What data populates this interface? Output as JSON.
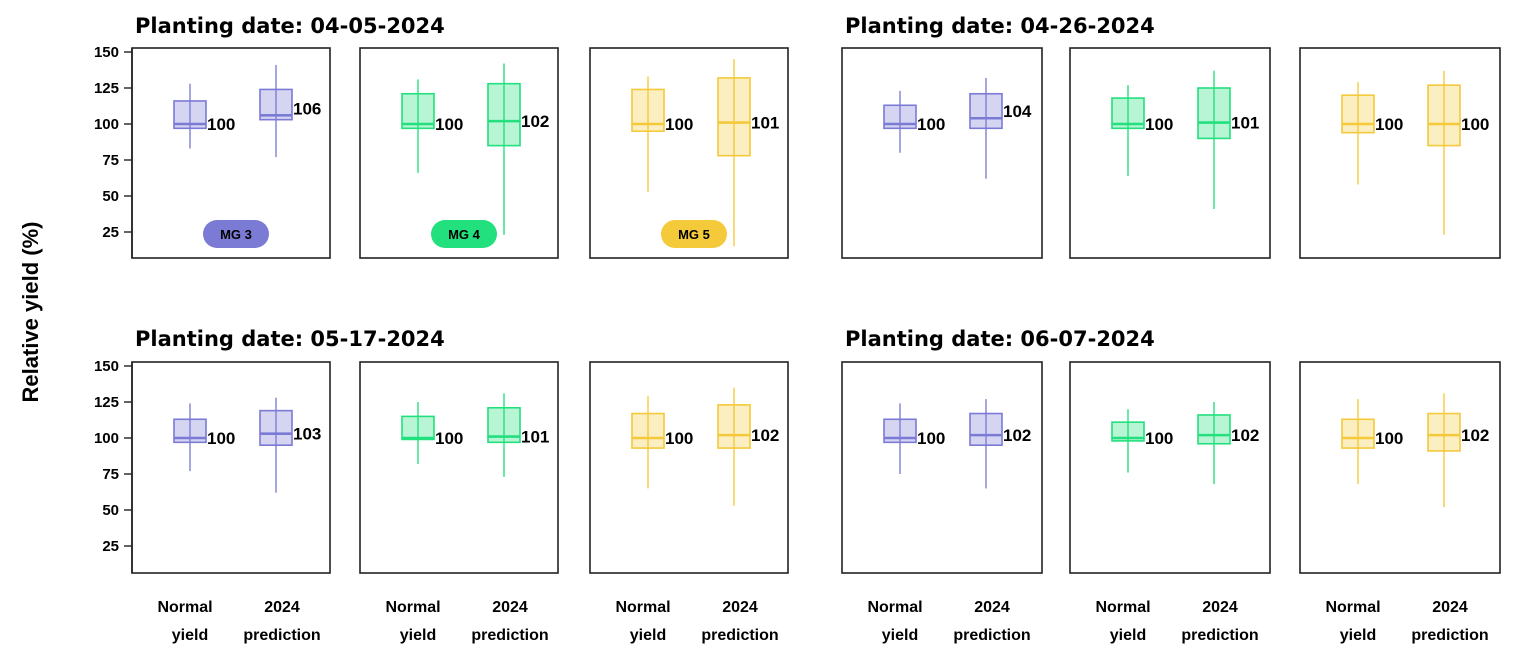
{
  "chart_data": {
    "type": "box",
    "ylabel": "Relative yield (%)",
    "ylim": [
      5,
      150
    ],
    "yticks": [
      25,
      50,
      75,
      100,
      125,
      150
    ],
    "x_categories": [
      [
        "Normal",
        "yield"
      ],
      [
        "2024",
        "prediction"
      ]
    ],
    "groups": [
      {
        "name": "MG 3",
        "color": "#7b7bd6"
      },
      {
        "name": "MG 4",
        "color": "#22e07d"
      },
      {
        "name": "MG 5",
        "color": "#f4c93a"
      }
    ],
    "facets": [
      {
        "title": "Planting date: 04-05-2024",
        "boxes": [
          {
            "normal": {
              "min": 83,
              "q1": 97,
              "median": 100,
              "q3": 116,
              "max": 128,
              "label": "100"
            },
            "prediction": {
              "min": 77,
              "q1": 103,
              "median": 106,
              "q3": 124,
              "max": 141,
              "label": "106"
            }
          },
          {
            "normal": {
              "min": 66,
              "q1": 97,
              "median": 100,
              "q3": 121,
              "max": 131,
              "label": "100"
            },
            "prediction": {
              "min": 23,
              "q1": 85,
              "median": 102,
              "q3": 128,
              "max": 142,
              "label": "102"
            }
          },
          {
            "normal": {
              "min": 53,
              "q1": 95,
              "median": 100,
              "q3": 124,
              "max": 133,
              "label": "100"
            },
            "prediction": {
              "min": 15,
              "q1": 78,
              "median": 101,
              "q3": 132,
              "max": 145,
              "label": "101"
            }
          }
        ]
      },
      {
        "title": "Planting date: 04-26-2024",
        "boxes": [
          {
            "normal": {
              "min": 80,
              "q1": 97,
              "median": 100,
              "q3": 113,
              "max": 123,
              "label": "100"
            },
            "prediction": {
              "min": 62,
              "q1": 97,
              "median": 104,
              "q3": 121,
              "max": 132,
              "label": "104"
            }
          },
          {
            "normal": {
              "min": 64,
              "q1": 97,
              "median": 100,
              "q3": 118,
              "max": 127,
              "label": "100"
            },
            "prediction": {
              "min": 41,
              "q1": 90,
              "median": 101,
              "q3": 125,
              "max": 137,
              "label": "101"
            }
          },
          {
            "normal": {
              "min": 58,
              "q1": 94,
              "median": 100,
              "q3": 120,
              "max": 129,
              "label": "100"
            },
            "prediction": {
              "min": 23,
              "q1": 85,
              "median": 100,
              "q3": 127,
              "max": 137,
              "label": "100"
            }
          }
        ]
      },
      {
        "title": "Planting date: 05-17-2024",
        "boxes": [
          {
            "normal": {
              "min": 77,
              "q1": 97,
              "median": 100,
              "q3": 113,
              "max": 124,
              "label": "100"
            },
            "prediction": {
              "min": 62,
              "q1": 95,
              "median": 103,
              "q3": 119,
              "max": 128,
              "label": "103"
            }
          },
          {
            "normal": {
              "min": 82,
              "q1": 99,
              "median": 100,
              "q3": 115,
              "max": 125,
              "label": "100"
            },
            "prediction": {
              "min": 73,
              "q1": 97,
              "median": 101,
              "q3": 121,
              "max": 131,
              "label": "101"
            }
          },
          {
            "normal": {
              "min": 65,
              "q1": 93,
              "median": 100,
              "q3": 117,
              "max": 129,
              "label": "100"
            },
            "prediction": {
              "min": 53,
              "q1": 93,
              "median": 102,
              "q3": 123,
              "max": 135,
              "label": "102"
            }
          }
        ]
      },
      {
        "title": "Planting date: 06-07-2024",
        "boxes": [
          {
            "normal": {
              "min": 75,
              "q1": 97,
              "median": 100,
              "q3": 113,
              "max": 124,
              "label": "100"
            },
            "prediction": {
              "min": 65,
              "q1": 95,
              "median": 102,
              "q3": 117,
              "max": 127,
              "label": "102"
            }
          },
          {
            "normal": {
              "min": 76,
              "q1": 98,
              "median": 100,
              "q3": 111,
              "max": 120,
              "label": "100"
            },
            "prediction": {
              "min": 68,
              "q1": 96,
              "median": 102,
              "q3": 116,
              "max": 125,
              "label": "102"
            }
          },
          {
            "normal": {
              "min": 68,
              "q1": 93,
              "median": 100,
              "q3": 113,
              "max": 127,
              "label": "100"
            },
            "prediction": {
              "min": 52,
              "q1": 91,
              "median": 102,
              "q3": 117,
              "max": 131,
              "label": "102"
            }
          }
        ]
      }
    ]
  }
}
